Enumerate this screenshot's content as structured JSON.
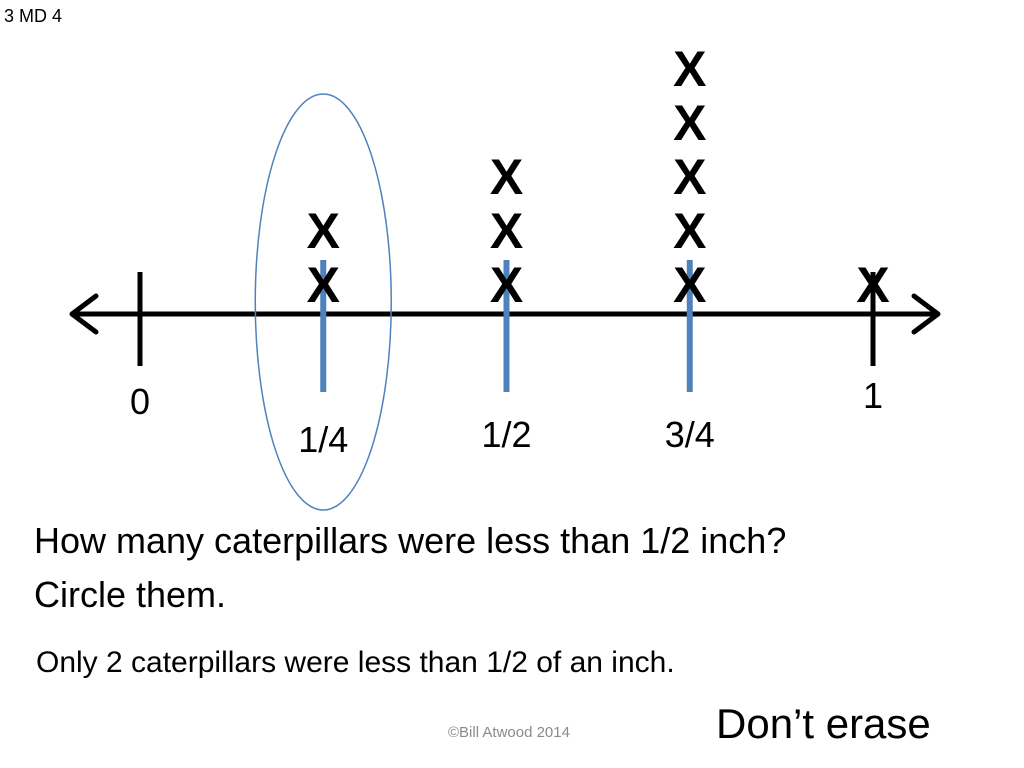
{
  "slide": {
    "standard": "3 MD 4",
    "question_line1": "How many caterpillars were less than 1/2 inch?",
    "question_line2": "Circle them.",
    "answer": "Only 2 caterpillars were less than 1/2 of an inch.",
    "copyright": "©Bill Atwood 2014",
    "note": "Don’t erase"
  },
  "chart_data": {
    "type": "line plot",
    "xlim": [
      0,
      1
    ],
    "end_ticks": [
      {
        "value": 0,
        "label": "0"
      },
      {
        "value": 1,
        "label": "1"
      }
    ],
    "categories": [
      "1/4",
      "1/2",
      "3/4",
      "1"
    ],
    "x_values": [
      0.25,
      0.5,
      0.75,
      1
    ],
    "counts": [
      2,
      3,
      5,
      1
    ],
    "mark_symbol": "X",
    "circled_category": "1/4",
    "colors": {
      "axis": "#000000",
      "fraction_ticks": "#4f81bd",
      "circle": "#4f81bd"
    }
  }
}
